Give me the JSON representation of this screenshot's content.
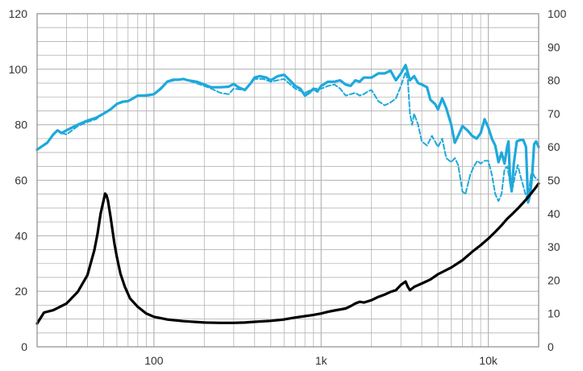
{
  "chart_data": {
    "type": "line",
    "title": "",
    "xlabel": "",
    "ylabel_left": "",
    "ylabel_right": "",
    "x_scale": "log",
    "xlim": [
      20,
      20000
    ],
    "ylim_left": [
      0,
      120
    ],
    "ylim_right": [
      0,
      100
    ],
    "grid": true,
    "x_tick_labels": [
      {
        "value": 100,
        "label": "100"
      },
      {
        "value": 1000,
        "label": "1k"
      },
      {
        "value": 10000,
        "label": "10k"
      }
    ],
    "y_left_ticks": [
      "0",
      "20",
      "40",
      "60",
      "80",
      "100",
      "120"
    ],
    "y_right_ticks": [
      "0",
      "10",
      "20",
      "30",
      "40",
      "50",
      "60",
      "70",
      "80",
      "90",
      "100"
    ],
    "colors": {
      "response": "#1ea9dc",
      "impedance": "#000000",
      "grid": "#b4b4b4",
      "frame": "#8c8c8c"
    },
    "series": [
      {
        "style": "solid",
        "color": "#1ea9dc",
        "axis": "left",
        "points": [
          [
            20,
            71
          ],
          [
            23,
            73.5
          ],
          [
            25,
            76.5
          ],
          [
            26.5,
            78
          ],
          [
            28,
            77
          ],
          [
            30,
            78
          ],
          [
            35,
            80
          ],
          [
            40,
            81.5
          ],
          [
            45,
            82.5
          ],
          [
            50,
            84
          ],
          [
            55,
            85.5
          ],
          [
            60,
            87.5
          ],
          [
            65,
            88.3
          ],
          [
            70,
            88.5
          ],
          [
            75,
            89.5
          ],
          [
            80,
            90.5
          ],
          [
            90,
            90.5
          ],
          [
            100,
            91
          ],
          [
            110,
            93
          ],
          [
            120,
            95.5
          ],
          [
            130,
            96.2
          ],
          [
            140,
            96.2
          ],
          [
            150,
            96.5
          ],
          [
            160,
            96
          ],
          [
            180,
            95.5
          ],
          [
            200,
            94.5
          ],
          [
            220,
            93.5
          ],
          [
            250,
            93.5
          ],
          [
            280,
            93.7
          ],
          [
            300,
            94.7
          ],
          [
            320,
            93.5
          ],
          [
            350,
            92.5
          ],
          [
            380,
            95
          ],
          [
            400,
            97
          ],
          [
            430,
            97.5
          ],
          [
            470,
            97
          ],
          [
            500,
            96
          ],
          [
            550,
            97.5
          ],
          [
            600,
            98
          ],
          [
            650,
            96
          ],
          [
            700,
            94
          ],
          [
            750,
            93
          ],
          [
            800,
            90.5
          ],
          [
            850,
            91.5
          ],
          [
            900,
            93
          ],
          [
            950,
            92
          ],
          [
            1000,
            94
          ],
          [
            1100,
            95.5
          ],
          [
            1200,
            95.5
          ],
          [
            1300,
            96
          ],
          [
            1400,
            94.5
          ],
          [
            1500,
            94
          ],
          [
            1600,
            96
          ],
          [
            1700,
            95.5
          ],
          [
            1800,
            97
          ],
          [
            1900,
            97
          ],
          [
            2000,
            97
          ],
          [
            2200,
            98.5
          ],
          [
            2400,
            98.5
          ],
          [
            2600,
            99.5
          ],
          [
            2800,
            96
          ],
          [
            3000,
            98.5
          ],
          [
            3200,
            101.5
          ],
          [
            3400,
            96
          ],
          [
            3600,
            97.5
          ],
          [
            3800,
            95
          ],
          [
            4000,
            94.5
          ],
          [
            4300,
            93.5
          ],
          [
            4500,
            89
          ],
          [
            4800,
            87.5
          ],
          [
            5000,
            85.5
          ],
          [
            5300,
            89.5
          ],
          [
            5600,
            86
          ],
          [
            6000,
            80
          ],
          [
            6300,
            73.5
          ],
          [
            6600,
            76
          ],
          [
            7000,
            79.5
          ],
          [
            7500,
            78
          ],
          [
            8000,
            76
          ],
          [
            8500,
            75
          ],
          [
            9000,
            77
          ],
          [
            9500,
            82
          ],
          [
            10000,
            79
          ],
          [
            10500,
            75
          ],
          [
            11000,
            72.5
          ],
          [
            11500,
            66.5
          ],
          [
            12000,
            70
          ],
          [
            12500,
            66
          ],
          [
            13000,
            72.5
          ],
          [
            13200,
            74
          ],
          [
            13500,
            60
          ],
          [
            13800,
            56
          ],
          [
            14200,
            66
          ],
          [
            14800,
            74
          ],
          [
            15500,
            74.5
          ],
          [
            16200,
            74.5
          ],
          [
            16800,
            72
          ],
          [
            17300,
            52
          ],
          [
            17800,
            55
          ],
          [
            18300,
            62
          ],
          [
            18800,
            73
          ],
          [
            19300,
            74
          ],
          [
            20000,
            72
          ]
        ]
      },
      {
        "style": "dashed",
        "color": "#1ea9dc",
        "axis": "left",
        "points": [
          [
            28,
            77
          ],
          [
            30,
            76.5
          ],
          [
            35,
            79.5
          ],
          [
            40,
            81
          ],
          [
            45,
            82
          ],
          [
            50,
            84
          ],
          [
            60,
            87.5
          ],
          [
            70,
            88.5
          ],
          [
            80,
            90.5
          ],
          [
            100,
            91
          ],
          [
            120,
            95.5
          ],
          [
            150,
            96.5
          ],
          [
            200,
            94
          ],
          [
            220,
            93
          ],
          [
            250,
            91.5
          ],
          [
            280,
            91
          ],
          [
            300,
            93
          ],
          [
            350,
            92.5
          ],
          [
            400,
            96.5
          ],
          [
            450,
            96.5
          ],
          [
            500,
            95.5
          ],
          [
            600,
            96.5
          ],
          [
            700,
            93
          ],
          [
            800,
            91.5
          ],
          [
            900,
            93
          ],
          [
            1000,
            93
          ],
          [
            1100,
            94
          ],
          [
            1200,
            94.5
          ],
          [
            1300,
            93
          ],
          [
            1400,
            90.5
          ],
          [
            1500,
            91
          ],
          [
            1600,
            91.5
          ],
          [
            1700,
            90.5
          ],
          [
            1800,
            91
          ],
          [
            1900,
            92
          ],
          [
            2000,
            92.5
          ],
          [
            2200,
            88.5
          ],
          [
            2400,
            87
          ],
          [
            2600,
            88
          ],
          [
            2800,
            89.5
          ],
          [
            3000,
            94
          ],
          [
            3200,
            99
          ],
          [
            3300,
            96
          ],
          [
            3400,
            84
          ],
          [
            3500,
            80
          ],
          [
            3600,
            84
          ],
          [
            3800,
            80
          ],
          [
            4000,
            74
          ],
          [
            4300,
            72.5
          ],
          [
            4600,
            76
          ],
          [
            5000,
            72
          ],
          [
            5300,
            75
          ],
          [
            5600,
            68
          ],
          [
            6000,
            66.5
          ],
          [
            6300,
            68
          ],
          [
            6600,
            65.5
          ],
          [
            7000,
            56
          ],
          [
            7300,
            55
          ],
          [
            7800,
            62
          ],
          [
            8200,
            65
          ],
          [
            8600,
            67
          ],
          [
            9000,
            66
          ],
          [
            9500,
            67
          ],
          [
            10000,
            67
          ],
          [
            10500,
            62
          ],
          [
            11000,
            55
          ],
          [
            11500,
            52.5
          ],
          [
            12000,
            55
          ],
          [
            12500,
            64
          ],
          [
            13000,
            65
          ],
          [
            13500,
            59
          ],
          [
            14000,
            57.5
          ],
          [
            14500,
            62
          ],
          [
            15000,
            65.5
          ],
          [
            15500,
            62
          ],
          [
            16000,
            59
          ],
          [
            16500,
            56
          ],
          [
            17000,
            53.5
          ],
          [
            17500,
            56
          ],
          [
            18000,
            62
          ],
          [
            18500,
            62.5
          ],
          [
            19000,
            61
          ],
          [
            19500,
            60.5
          ],
          [
            20000,
            60
          ]
        ]
      },
      {
        "style": "solid",
        "color": "#000000",
        "axis": "right",
        "points": [
          [
            20,
            7
          ],
          [
            22,
            10.3
          ],
          [
            25,
            11
          ],
          [
            30,
            13
          ],
          [
            35,
            16.5
          ],
          [
            40,
            21.5
          ],
          [
            44,
            29
          ],
          [
            46,
            34
          ],
          [
            48,
            40
          ],
          [
            50,
            44
          ],
          [
            51,
            46
          ],
          [
            52,
            45.5
          ],
          [
            53,
            44
          ],
          [
            55,
            39
          ],
          [
            58,
            31
          ],
          [
            60,
            27
          ],
          [
            63,
            22
          ],
          [
            67,
            18
          ],
          [
            72,
            14.5
          ],
          [
            80,
            12
          ],
          [
            90,
            10
          ],
          [
            100,
            9
          ],
          [
            120,
            8.2
          ],
          [
            150,
            7.7
          ],
          [
            200,
            7.3
          ],
          [
            250,
            7.2
          ],
          [
            300,
            7.2
          ],
          [
            350,
            7.3
          ],
          [
            400,
            7.5
          ],
          [
            500,
            7.8
          ],
          [
            600,
            8.2
          ],
          [
            700,
            8.8
          ],
          [
            800,
            9.2
          ],
          [
            900,
            9.6
          ],
          [
            1000,
            10
          ],
          [
            1100,
            10.5
          ],
          [
            1200,
            10.9
          ],
          [
            1400,
            11.5
          ],
          [
            1500,
            12.2
          ],
          [
            1600,
            13
          ],
          [
            1700,
            13.5
          ],
          [
            1800,
            13.3
          ],
          [
            2000,
            14
          ],
          [
            2200,
            15
          ],
          [
            2400,
            15.7
          ],
          [
            2600,
            16.5
          ],
          [
            2800,
            17
          ],
          [
            3000,
            18.6
          ],
          [
            3200,
            19.6
          ],
          [
            3300,
            18
          ],
          [
            3400,
            17
          ],
          [
            3600,
            18
          ],
          [
            4000,
            19
          ],
          [
            4500,
            20.2
          ],
          [
            5000,
            21.8
          ],
          [
            6000,
            23.8
          ],
          [
            7000,
            26
          ],
          [
            8000,
            28.5
          ],
          [
            9000,
            30.5
          ],
          [
            10000,
            32.5
          ],
          [
            11000,
            34.5
          ],
          [
            12000,
            36.5
          ],
          [
            13000,
            38.5
          ],
          [
            14000,
            40
          ],
          [
            15000,
            41.5
          ],
          [
            16000,
            43
          ],
          [
            17000,
            44.5
          ],
          [
            18000,
            46
          ],
          [
            19000,
            47.5
          ],
          [
            20000,
            49
          ]
        ]
      }
    ]
  }
}
